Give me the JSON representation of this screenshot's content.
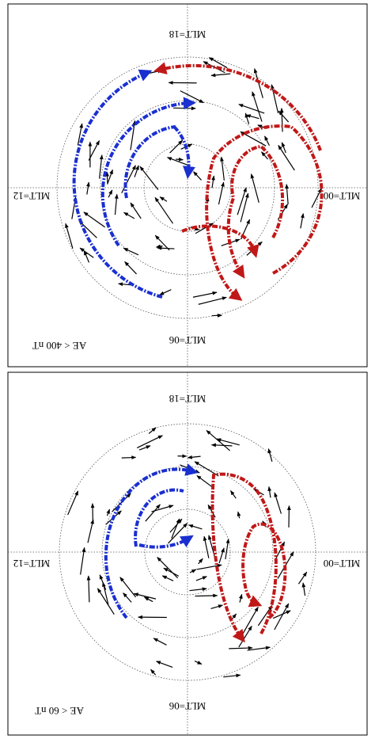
{
  "panels": [
    {
      "labels": {
        "top": "MLT=18",
        "left": "MLT=12",
        "right": "MLT=00",
        "bottom": "MLT=06"
      },
      "caption": "AE < 400 nT"
    },
    {
      "labels": {
        "top": "MLT=18",
        "left": "MLT=12",
        "right": "MLT=00",
        "bottom": "MLT=06"
      },
      "caption": "AE < 60 nT"
    }
  ]
}
